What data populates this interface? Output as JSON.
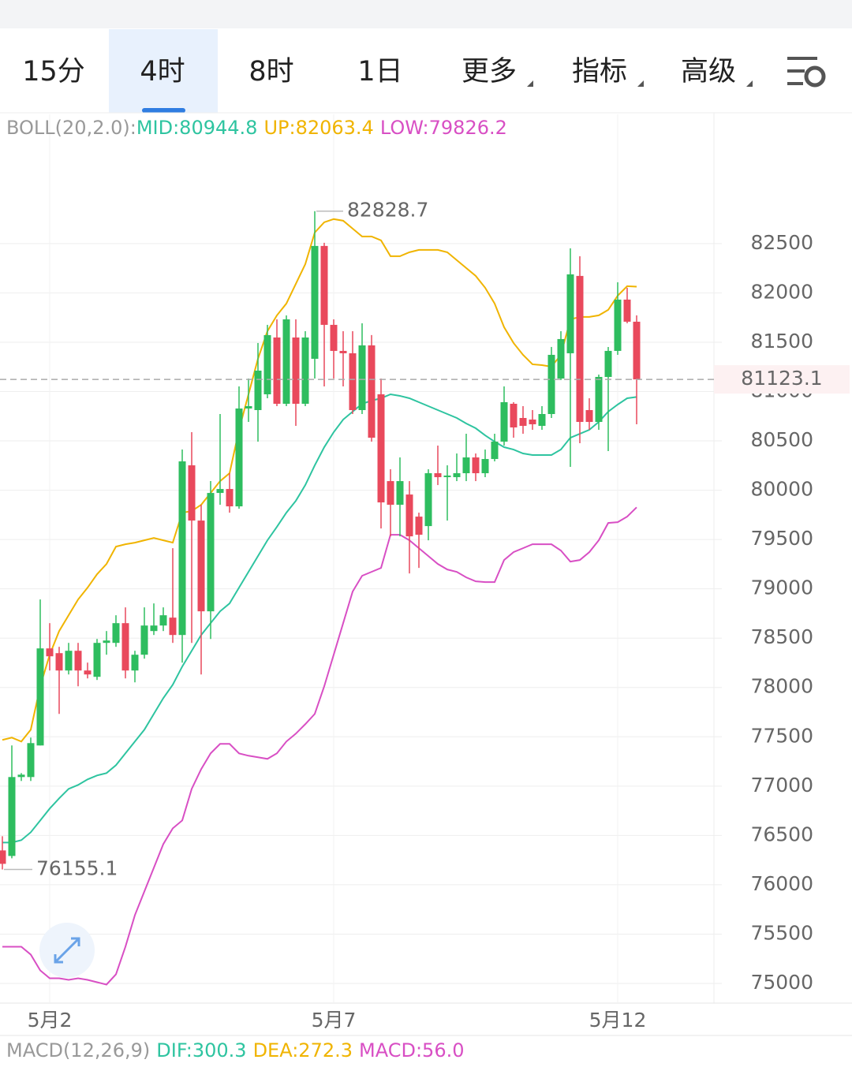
{
  "tabs": [
    "15分",
    "4时",
    "8时",
    "1日",
    "更多",
    "指标",
    "高级"
  ],
  "chart_data": {
    "type": "candlestick",
    "legend_title": "BOLL(20,2.0):",
    "categories": [
      null,
      null,
      null,
      null,
      null,
      "5月2",
      null,
      null,
      null,
      null,
      null,
      null,
      null,
      null,
      null,
      null,
      null,
      null,
      null,
      null,
      null,
      null,
      null,
      null,
      null,
      null,
      null,
      null,
      null,
      null,
      null,
      null,
      null,
      null,
      null,
      "5月7",
      null,
      null,
      null,
      null,
      null,
      null,
      null,
      null,
      null,
      null,
      null,
      null,
      null,
      null,
      null,
      null,
      null,
      null,
      null,
      null,
      null,
      null,
      null,
      null,
      null,
      null,
      null,
      null,
      null,
      "5月12",
      null,
      null
    ],
    "open": [
      76348,
      76292,
      77092,
      77092,
      77412,
      78396,
      78348,
      78172,
      78372,
      78172,
      78108,
      78452,
      78452,
      78652,
      78172,
      78332,
      78572,
      78628,
      78708,
      78532,
      80252,
      79692,
      78772,
      79972,
      80012,
      79836,
      80828,
      80812,
      80972,
      81548,
      80876,
      81548,
      80876,
      81332,
      82476,
      81676,
      81412,
      81388,
      80812,
      81468,
      80972,
      80092,
      79852,
      79956,
      79732,
      79636,
      80172,
      80132,
      80132,
      80172,
      80332,
      80172,
      80316,
      80492,
      80876,
      80732,
      80716,
      80652,
      80772,
      81132,
      81388,
      82172,
      80812,
      80692,
      81148,
      81412,
      81932,
      81708
    ],
    "high": [
      76492,
      77412,
      77132,
      77492,
      78892,
      78652,
      78412,
      78452,
      78452,
      78252,
      78492,
      78572,
      78732,
      78812,
      78372,
      78812,
      78852,
      78812,
      79412,
      80412,
      80588,
      79852,
      80092,
      80772,
      80172,
      81052,
      81132,
      81492,
      81676,
      81732,
      81772,
      81732,
      81612,
      82828.7,
      82508,
      81732,
      81612,
      81612,
      81692,
      81572,
      81132,
      80212,
      80332,
      80092,
      79772,
      80212,
      80452,
      80252,
      80372,
      80572,
      80372,
      80412,
      80572,
      81052,
      80892,
      80852,
      80812,
      80852,
      81452,
      81612,
      82452,
      82372,
      80932,
      81172,
      81452,
      82108,
      82052,
      81772
    ],
    "low": [
      76155.1,
      76268,
      77052,
      77052,
      77412,
      78172,
      77732,
      78132,
      78012,
      78092,
      78076,
      78332,
      78412,
      78092,
      78052,
      78292,
      78532,
      78572,
      78452,
      78252,
      78452,
      78132,
      78492,
      79852,
      79772,
      79812,
      80692,
      80492,
      80932,
      80852,
      80852,
      80652,
      80852,
      81132,
      81052,
      81132,
      81052,
      80772,
      80772,
      80492,
      79612,
      79532,
      79532,
      79156,
      79212,
      79492,
      80052,
      79692,
      80092,
      80092,
      80092,
      80132,
      80292,
      80452,
      80532,
      80572,
      80612,
      80612,
      80732,
      81116,
      80236,
      80476,
      80612,
      80612,
      80396,
      81372,
      81692,
      80668
    ],
    "close": [
      76212,
      77092,
      77116,
      77436,
      78396,
      78316,
      78172,
      78372,
      78172,
      78132,
      78452,
      78476,
      78652,
      78172,
      78332,
      78628,
      78628,
      78732,
      78532,
      80292,
      79692,
      78772,
      79972,
      80012,
      79836,
      80828,
      80852,
      81212,
      81572,
      80876,
      81732,
      80876,
      81548,
      82476,
      81676,
      81412,
      81388,
      80812,
      81468,
      80532,
      79876,
      79852,
      80092,
      79532,
      79548,
      80172,
      80132,
      80148,
      80172,
      80332,
      80172,
      80316,
      80492,
      80892,
      80636,
      80652,
      80668,
      80772,
      81372,
      81532,
      82188,
      80692,
      80692,
      81148,
      81412,
      81932,
      81708,
      81123.1
    ],
    "up_color": "#2ebd5f",
    "down_color": "#e9495c",
    "series": [
      {
        "name": "MID:80944.8",
        "color": "#2ec4a0",
        "values": [
          76428,
          76428,
          76452,
          76532,
          76652,
          76772,
          76876,
          76972,
          77012,
          77068,
          77108,
          77132,
          77212,
          77332,
          77452,
          77572,
          77732,
          77892,
          78028,
          78212,
          78372,
          78532,
          78652,
          78772,
          78852,
          79012,
          79172,
          79332,
          79492,
          79628,
          79772,
          79892,
          80052,
          80252,
          80436,
          80588,
          80716,
          80796,
          80876,
          80908,
          80932,
          80972,
          80956,
          80932,
          80892,
          80852,
          80812,
          80772,
          80732,
          80676,
          80628,
          80556,
          80492,
          80436,
          80412,
          80372,
          80356,
          80356,
          80356,
          80412,
          80532,
          80572,
          80612,
          80692,
          80796,
          80868,
          80932,
          80944.8
        ]
      },
      {
        "name": "UP:82063.4",
        "color": "#f0b400",
        "values": [
          77468,
          77492,
          77452,
          77572,
          78012,
          78332,
          78572,
          78732,
          78892,
          79012,
          79148,
          79252,
          79428,
          79452,
          79468,
          79492,
          79516,
          79492,
          79468,
          79772,
          79788,
          79852,
          79972,
          80092,
          80172,
          80612,
          80972,
          81332,
          81612,
          81772,
          81892,
          82092,
          82292,
          82612,
          82716,
          82748,
          82732,
          82652,
          82572,
          82572,
          82532,
          82372,
          82372,
          82412,
          82436,
          82436,
          82436,
          82412,
          82332,
          82252,
          82172,
          82052,
          81892,
          81652,
          81492,
          81372,
          81276,
          81268,
          81252,
          81372,
          81732,
          81756,
          81756,
          81772,
          81828,
          81972,
          82068,
          82063.4
        ]
      },
      {
        "name": "LOW:79826.2",
        "color": "#d84fc4",
        "values": [
          75372,
          75372,
          75372,
          75292,
          75132,
          75052,
          75052,
          75036,
          75052,
          75036,
          75012,
          74988,
          75092,
          75372,
          75692,
          75932,
          76172,
          76412,
          76572,
          76652,
          76972,
          77172,
          77332,
          77428,
          77428,
          77332,
          77308,
          77292,
          77276,
          77332,
          77452,
          77532,
          77628,
          77732,
          78012,
          78332,
          78652,
          78972,
          79132,
          79172,
          79212,
          79548,
          79548,
          79492,
          79412,
          79332,
          79252,
          79196,
          79172,
          79116,
          79076,
          79068,
          79068,
          79292,
          79372,
          79412,
          79452,
          79452,
          79452,
          79388,
          79276,
          79292,
          79372,
          79492,
          79668,
          79676,
          79732,
          79826.2
        ]
      }
    ],
    "ylim": [
      74800,
      83810
    ],
    "yticks": [
      75000,
      75500,
      76000,
      76500,
      77000,
      77500,
      78000,
      78500,
      79000,
      79500,
      80000,
      80500,
      81000,
      81500,
      82000,
      82500
    ],
    "grid": true,
    "last_price": 81123.1
  },
  "macd": {
    "title": "MACD(12,26,9)",
    "items": [
      {
        "text": "DIF:300.3",
        "color": "#2ec4a0"
      },
      {
        "text": "DEA:272.3",
        "color": "#f0b400"
      },
      {
        "text": "MACD:56.0",
        "color": "#d84fc4"
      }
    ]
  }
}
